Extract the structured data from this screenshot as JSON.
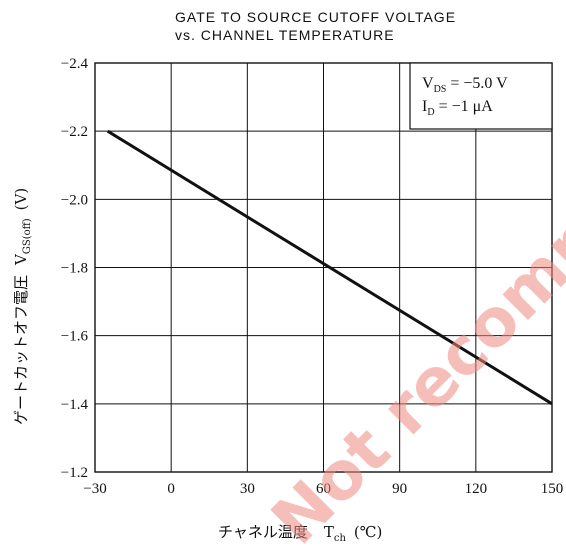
{
  "chart_data": {
    "type": "line",
    "title_line1": "GATE TO SOURCE CUTOFF VOLTAGE",
    "title_line2": "vs. CHANNEL TEMPERATURE",
    "xlabel": "チャネル温度",
    "xlabel_symbol": "T",
    "xlabel_sub": "ch",
    "xlabel_unit": "(℃)",
    "ylabel": "ゲートカットオフ電圧",
    "ylabel_symbol": "V",
    "ylabel_sub": "GS(off)",
    "ylabel_unit": "(V)",
    "xlim": [
      -30,
      150
    ],
    "ylim": [
      -1.2,
      -2.4
    ],
    "x_ticks": [
      -30,
      0,
      30,
      60,
      90,
      120,
      150
    ],
    "x_tick_labels": [
      "−30",
      "0",
      "30",
      "60",
      "90",
      "120",
      "150"
    ],
    "y_ticks": [
      -2.4,
      -2.2,
      -2.0,
      -1.8,
      -1.6,
      -1.4,
      -1.2
    ],
    "y_tick_labels": [
      "−2.4",
      "−2.2",
      "−2.0",
      "−1.8",
      "−1.6",
      "−1.4",
      "−1.2"
    ],
    "grid": true,
    "series": [
      {
        "x": [
          -25,
          150
        ],
        "y": [
          -2.2,
          -1.4
        ]
      }
    ],
    "conditions": [
      {
        "symbol": "V",
        "sub": "DS",
        "text": " = −5.0 V"
      },
      {
        "symbol": "I",
        "sub": "D",
        "text": " = −1 μA"
      }
    ]
  },
  "watermark": "Not recommended for new design",
  "colors": {
    "line": "#111111",
    "grid": "#111111",
    "watermark": "#f08a80"
  }
}
